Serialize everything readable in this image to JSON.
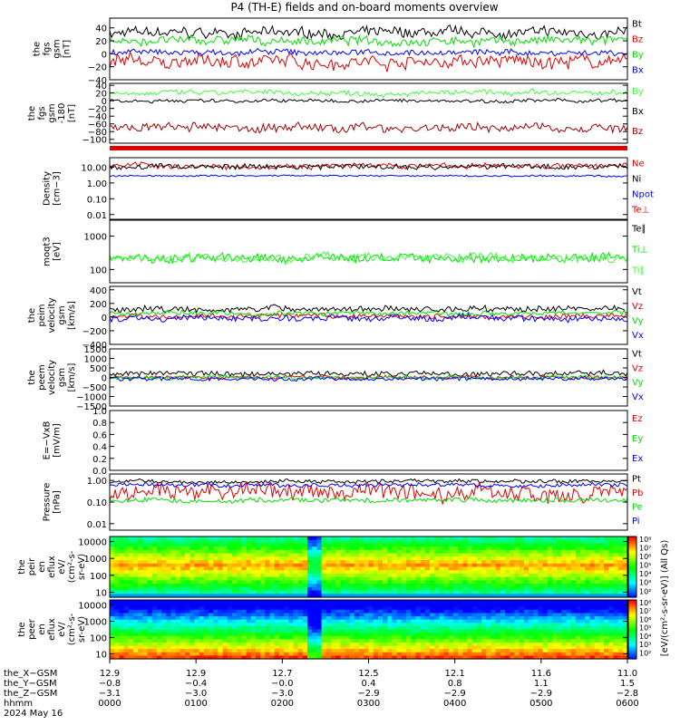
{
  "title": "P4 (TH-E) fields and on-board moments overview",
  "date": "2024 May 16",
  "colors": {
    "black": "#000000",
    "red": "#e00000",
    "green": "#00e000",
    "blue": "#0000ff",
    "darkred": "#a00000",
    "limegreen": "#40ff40"
  },
  "chart_data": [
    {
      "type": "line",
      "ylabel": [
        "the",
        "fgs",
        "gsm",
        "[nT]"
      ],
      "ylim": [
        -40,
        55
      ],
      "yticks": [
        "40",
        "20",
        "0",
        "−20",
        "−40"
      ],
      "ytick_values": [
        40,
        20,
        0,
        -20,
        -40
      ],
      "series": [
        {
          "name": "Bt",
          "color": "#000000",
          "base": 32,
          "noise": 7
        },
        {
          "name": "Bz",
          "color": "#e00000",
          "base": -12,
          "noise": 9
        },
        {
          "name": "By",
          "color": "#00e000",
          "base": 20,
          "noise": 6
        },
        {
          "name": "Bx",
          "color": "#0000ff",
          "base": 2,
          "noise": 4
        }
      ]
    },
    {
      "type": "line",
      "ylabel": [
        "the",
        "fgs",
        "gsm",
        "-180",
        "[nT]"
      ],
      "ylim": [
        -110,
        45
      ],
      "yticks": [
        "40",
        "20",
        "0",
        "−20",
        "−40",
        "−60",
        "−80",
        "−100"
      ],
      "ytick_values": [
        40,
        20,
        0,
        -20,
        -40,
        -60,
        -80,
        -100
      ],
      "series": [
        {
          "name": "By",
          "color": "#40ff40",
          "base": 20,
          "noise": 6
        },
        {
          "name": "Bx",
          "color": "#000000",
          "base": 0,
          "noise": 4
        },
        {
          "name": "Bz",
          "color": "#a00000",
          "base": -70,
          "noise": 10
        }
      ]
    },
    {
      "type": "line",
      "ylabel": [
        "Density",
        "[cm−3]"
      ],
      "ylim": [
        0.005,
        40
      ],
      "log": true,
      "yticks": [
        "10.00",
        "1.00",
        "0.10",
        "0.01"
      ],
      "ytick_values": [
        10,
        1,
        0.1,
        0.01
      ],
      "series": [
        {
          "name": "Ne",
          "color": "#e00000",
          "base": 12,
          "noise": 0.15
        },
        {
          "name": "Ni",
          "color": "#000000",
          "base": 11,
          "noise": 0.15
        },
        {
          "name": "Npot",
          "color": "#0000ff",
          "base": 2.8,
          "noise": 0.05
        },
        {
          "name": "Te⊥",
          "color": "#e00000",
          "base": 0,
          "noise": 0
        }
      ]
    },
    {
      "type": "line",
      "ylabel": [
        "moqt3",
        "[eV]"
      ],
      "ylim": [
        40,
        3000
      ],
      "log": true,
      "yticks": [
        "1000",
        "100"
      ],
      "ytick_values": [
        1000,
        100
      ],
      "series": [
        {
          "name": "Te∥",
          "color": "#000000",
          "base": 0,
          "noise": 0
        },
        {
          "name": "Ti⊥",
          "color": "#00e000",
          "base": 220,
          "noise": 0.12
        },
        {
          "name": "Ti∥",
          "color": "#40ff40",
          "base": 230,
          "noise": 0.12
        }
      ]
    },
    {
      "type": "line",
      "ylabel": [
        "the",
        "peim",
        "velocity",
        "gsm",
        "[km/s]"
      ],
      "ylim": [
        -400,
        450
      ],
      "yticks": [
        "400",
        "200",
        "0",
        "−200",
        "−400"
      ],
      "ytick_values": [
        400,
        200,
        0,
        -200,
        -400
      ],
      "series": [
        {
          "name": "Vt",
          "color": "#000000",
          "base": 120,
          "noise": 40
        },
        {
          "name": "Vz",
          "color": "#e00000",
          "base": 10,
          "noise": 30
        },
        {
          "name": "Vy",
          "color": "#00e000",
          "base": 60,
          "noise": 30
        },
        {
          "name": "Vx",
          "color": "#0000ff",
          "base": -20,
          "noise": 40
        }
      ]
    },
    {
      "type": "line",
      "ylabel": [
        "the",
        "peem",
        "velocity",
        "gsm",
        "[km/s]"
      ],
      "ylim": [
        -1500,
        1500
      ],
      "yticks": [
        "1500",
        "1000",
        "500",
        "0",
        "−500",
        "−1000",
        "−1500"
      ],
      "ytick_values": [
        1500,
        1000,
        500,
        0,
        -500,
        -1000,
        -1500
      ],
      "series": [
        {
          "name": "Vt",
          "color": "#000000",
          "base": 200,
          "noise": 120
        },
        {
          "name": "Vz",
          "color": "#e00000",
          "base": 0,
          "noise": 80
        },
        {
          "name": "Vy",
          "color": "#00e000",
          "base": 0,
          "noise": 80
        },
        {
          "name": "Vx",
          "color": "#0000ff",
          "base": -60,
          "noise": 90
        }
      ]
    },
    {
      "type": "line",
      "ylabel": [
        "E=−VxB",
        "[mV/m]"
      ],
      "ylim": [
        0,
        1.0
      ],
      "yticks": [
        "1.0",
        "0.8",
        "0.6",
        "0.4",
        "0.2",
        "0.0"
      ],
      "ytick_values": [
        1.0,
        0.8,
        0.6,
        0.4,
        0.2,
        0.0
      ],
      "series": [
        {
          "name": "Ez",
          "color": "#e00000",
          "base": 0,
          "noise": 0
        },
        {
          "name": "Ey",
          "color": "#00e000",
          "base": 0,
          "noise": 0
        },
        {
          "name": "Ex",
          "color": "#0000ff",
          "base": 0,
          "noise": 0
        }
      ]
    },
    {
      "type": "line",
      "ylabel": [
        "Pressure",
        "[nPa]"
      ],
      "ylim": [
        0.005,
        2
      ],
      "log": true,
      "yticks": [
        "1.00",
        "0.10",
        "0.01"
      ],
      "ytick_values": [
        1,
        0.1,
        0.01
      ],
      "series": [
        {
          "name": "Pt",
          "color": "#000000",
          "base": 0.9,
          "noise": 0.08
        },
        {
          "name": "Pb",
          "color": "#e00000",
          "base": 0.3,
          "noise": 0.35
        },
        {
          "name": "Pe",
          "color": "#00e000",
          "base": 0.12,
          "noise": 0.1
        },
        {
          "name": "Pi",
          "color": "#0000ff",
          "base": 0.6,
          "noise": 0.08
        }
      ]
    },
    {
      "type": "heatmap",
      "ylabel": [
        "the",
        "peir",
        "en",
        "eflux",
        "eV/",
        "(cm²-s-",
        "sr-eV)"
      ],
      "ylim": [
        5,
        20000
      ],
      "log": true,
      "yticks": [
        "10000",
        "1000",
        "100",
        "10"
      ],
      "ytick_values": [
        10000,
        1000,
        100,
        10
      ]
    },
    {
      "type": "heatmap",
      "ylabel": [
        "the",
        "peer",
        "en",
        "eflux",
        "eV/",
        "(cm²-s-",
        "sr-eV)"
      ],
      "ylim": [
        5,
        20000
      ],
      "log": true,
      "yticks": [
        "10000",
        "1000",
        "100",
        "10"
      ],
      "ytick_values": [
        10000,
        1000,
        100,
        10
      ]
    }
  ],
  "colorbar": {
    "ticks": [
      "10⁸",
      "10⁷",
      "10⁶",
      "10⁵",
      "10⁴",
      "10³",
      "10²"
    ],
    "label": "[eV/(cm²-s-sr-eV)] (All Qs)"
  },
  "xaxis": {
    "row_labels": [
      "the_X−GSM",
      "the_Y−GSM",
      "the_Z−GSM",
      "hhmm",
      "2024 May 16"
    ],
    "ticks": [
      [
        "12.9",
        "−0.8",
        "−3.1",
        "0000"
      ],
      [
        "12.9",
        "−0.4",
        "−3.0",
        "0100"
      ],
      [
        "12.7",
        "−0.0",
        "−3.0",
        "0200"
      ],
      [
        "12.5",
        "0.4",
        "−2.9",
        "0300"
      ],
      [
        "12.1",
        "0.8",
        "−2.9",
        "0400"
      ],
      [
        "11.6",
        "1.1",
        "−2.9",
        "0500"
      ],
      [
        "11.0",
        "1.5",
        "−2.8",
        "0600"
      ]
    ]
  }
}
